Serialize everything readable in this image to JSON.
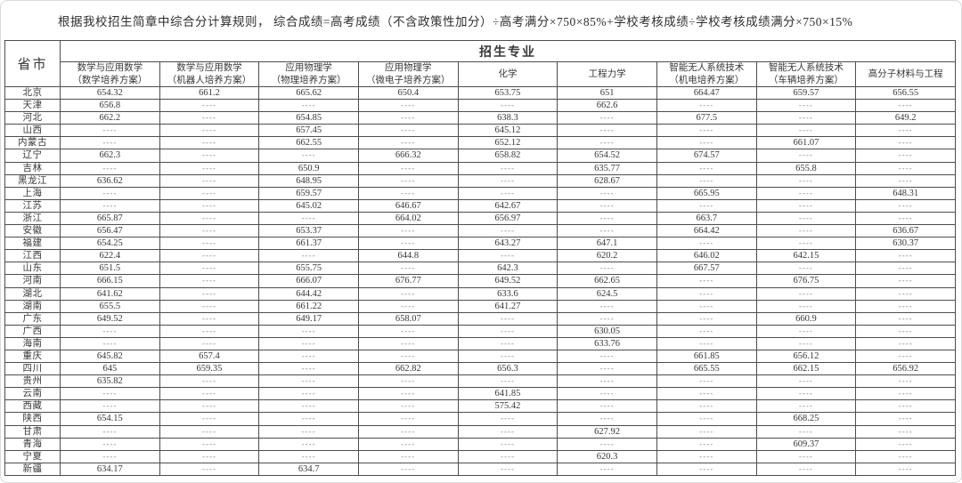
{
  "note": "根据我校招生简章中综合分计算规则， 综合成绩=高考成绩（不含政策性加分）÷高考满分×750×85%+学校考核成绩÷学校考核成绩满分×750×15%",
  "colors": {
    "table_border": "#4d4d4d",
    "text": "#383838",
    "empty_dash": "#8a8a8a",
    "card_border": "#d9d9d9",
    "background": "#ffffff"
  },
  "table": {
    "corner_header": "省市",
    "group_header": "招生专业",
    "empty_marker": "----",
    "columns": [
      {
        "line1": "数学与应用数学",
        "line2": "（数学培养方案）"
      },
      {
        "line1": "数学与应用数学",
        "line2": "（机器人培养方案）"
      },
      {
        "line1": "应用物理学",
        "line2": "（物理培养方案）"
      },
      {
        "line1": "应用物理学",
        "line2": "（微电子培养方案）"
      },
      {
        "line1": "化学",
        "line2": ""
      },
      {
        "line1": "工程力学",
        "line2": ""
      },
      {
        "line1": "智能无人系统技术",
        "line2": "（机电培养方案）"
      },
      {
        "line1": "智能无人系统技术",
        "line2": "（车辆培养方案）"
      },
      {
        "line1": "高分子材料与工程",
        "line2": ""
      }
    ],
    "rows": [
      {
        "province": "北京",
        "values": [
          "654.32",
          "661.2",
          "665.62",
          "650.4",
          "653.75",
          "651",
          "664.47",
          "659.57",
          "656.55"
        ]
      },
      {
        "province": "天津",
        "values": [
          "656.8",
          "",
          "",
          "",
          "",
          "662.6",
          "",
          "",
          ""
        ]
      },
      {
        "province": "河北",
        "values": [
          "662.2",
          "",
          "654.85",
          "",
          "638.3",
          "",
          "677.5",
          "",
          "649.2"
        ]
      },
      {
        "province": "山西",
        "values": [
          "",
          "",
          "657.45",
          "",
          "645.12",
          "",
          "",
          "",
          ""
        ]
      },
      {
        "province": "内蒙古",
        "values": [
          "",
          "",
          "662.55",
          "",
          "652.12",
          "",
          "",
          "661.07",
          ""
        ]
      },
      {
        "province": "辽宁",
        "values": [
          "662.3",
          "",
          "",
          "666.32",
          "658.82",
          "654.52",
          "674.57",
          "",
          ""
        ]
      },
      {
        "province": "吉林",
        "values": [
          "",
          "",
          "650.9",
          "",
          "",
          "635.77",
          "",
          "655.8",
          ""
        ]
      },
      {
        "province": "黑龙江",
        "values": [
          "636.62",
          "",
          "648.95",
          "",
          "",
          "628.67",
          "",
          "",
          ""
        ]
      },
      {
        "province": "上海",
        "values": [
          "",
          "",
          "659.57",
          "",
          "",
          "",
          "665.95",
          "",
          "648.31"
        ]
      },
      {
        "province": "江苏",
        "values": [
          "",
          "",
          "645.02",
          "646.67",
          "642.67",
          "",
          "",
          "",
          ""
        ]
      },
      {
        "province": "浙江",
        "values": [
          "665.87",
          "",
          "",
          "664.02",
          "656.97",
          "",
          "663.7",
          "",
          ""
        ]
      },
      {
        "province": "安徽",
        "values": [
          "656.47",
          "",
          "653.37",
          "",
          "",
          "",
          "664.42",
          "",
          "636.67"
        ]
      },
      {
        "province": "福建",
        "values": [
          "654.25",
          "",
          "661.37",
          "",
          "643.27",
          "647.1",
          "",
          "",
          "630.37"
        ]
      },
      {
        "province": "江西",
        "values": [
          "622.4",
          "",
          "",
          "644.8",
          "",
          "620.2",
          "646.02",
          "642.15",
          ""
        ]
      },
      {
        "province": "山东",
        "values": [
          "651.5",
          "",
          "655.75",
          "",
          "642.3",
          "",
          "667.57",
          "",
          ""
        ]
      },
      {
        "province": "河南",
        "values": [
          "666.15",
          "",
          "666.07",
          "676.77",
          "649.52",
          "662.65",
          "",
          "676.75",
          ""
        ]
      },
      {
        "province": "湖北",
        "values": [
          "641.62",
          "",
          "644.42",
          "",
          "633.6",
          "624.5",
          "",
          "",
          ""
        ]
      },
      {
        "province": "湖南",
        "values": [
          "655.5",
          "",
          "661.22",
          "",
          "641.27",
          "",
          "",
          "",
          ""
        ]
      },
      {
        "province": "广东",
        "values": [
          "649.52",
          "",
          "649.17",
          "658.07",
          "",
          "",
          "",
          "660.9",
          ""
        ]
      },
      {
        "province": "广西",
        "values": [
          "",
          "",
          "",
          "",
          "",
          "630.05",
          "",
          "",
          ""
        ]
      },
      {
        "province": "海南",
        "values": [
          "",
          "",
          "",
          "",
          "",
          "633.76",
          "",
          "",
          ""
        ]
      },
      {
        "province": "重庆",
        "values": [
          "645.82",
          "657.4",
          "",
          "",
          "",
          "",
          "661.85",
          "656.12",
          ""
        ]
      },
      {
        "province": "四川",
        "values": [
          "645",
          "659.35",
          "",
          "662.82",
          "656.3",
          "",
          "665.55",
          "662.15",
          "656.92"
        ]
      },
      {
        "province": "贵州",
        "values": [
          "635.82",
          "",
          "",
          "",
          "",
          "",
          "",
          "",
          ""
        ]
      },
      {
        "province": "云南",
        "values": [
          "",
          "",
          "",
          "",
          "641.85",
          "",
          "",
          "",
          ""
        ]
      },
      {
        "province": "西藏",
        "values": [
          "",
          "",
          "",
          "",
          "575.42",
          "",
          "",
          "",
          ""
        ]
      },
      {
        "province": "陕西",
        "values": [
          "654.15",
          "",
          "",
          "",
          "",
          "",
          "",
          "668.25",
          ""
        ]
      },
      {
        "province": "甘肃",
        "values": [
          "",
          "",
          "",
          "",
          "",
          "627.92",
          "",
          "",
          ""
        ]
      },
      {
        "province": "青海",
        "values": [
          "",
          "",
          "",
          "",
          "",
          "",
          "",
          "609.37",
          ""
        ]
      },
      {
        "province": "宁夏",
        "values": [
          "",
          "",
          "",
          "",
          "",
          "620.3",
          "",
          "",
          ""
        ]
      },
      {
        "province": "新疆",
        "values": [
          "634.17",
          "",
          "634.7",
          "",
          "",
          "",
          "",
          "",
          ""
        ]
      }
    ]
  }
}
